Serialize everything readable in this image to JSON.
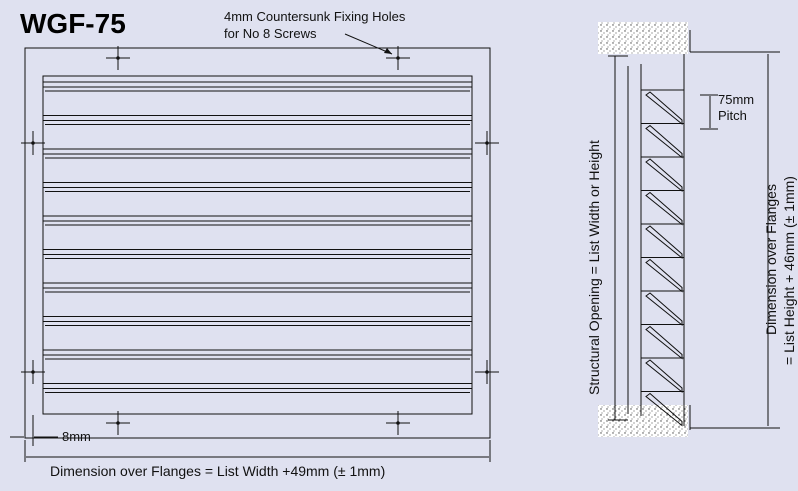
{
  "title": "WGF-75",
  "notes": {
    "fixing_holes": [
      "4mm Countersunk Fixing Holes",
      "for No 8 Screws"
    ],
    "flange_offset": "8mm",
    "width_dimension": "Dimension over Flanges = List Width +49mm (± 1mm)",
    "structural_opening": "Structural Opening = List Width or Height",
    "pitch": [
      "75mm",
      "Pitch"
    ],
    "height_dimension": [
      "Dimension over Flanges",
      "= List Height + 46mm (± 1mm)"
    ]
  }
}
